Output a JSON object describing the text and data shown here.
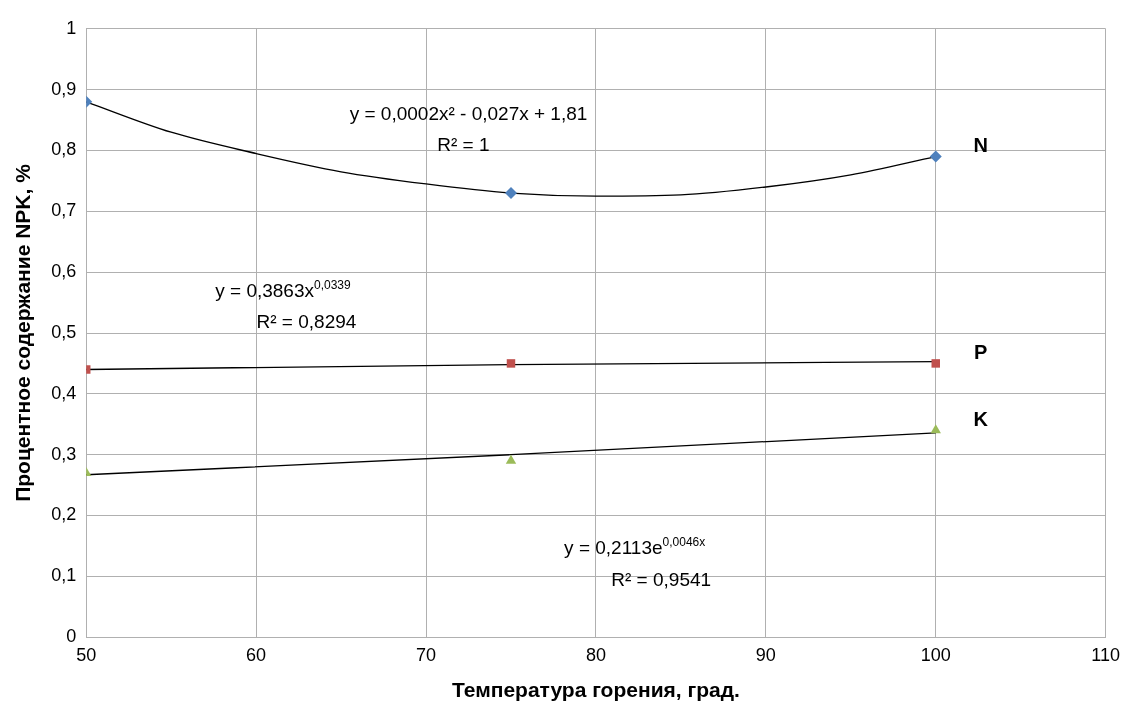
{
  "chart_data": {
    "type": "scatter",
    "xlabel": "Температура горения, град.",
    "ylabel": "Процентное содержание NPK, %",
    "xlim": [
      50,
      110
    ],
    "xticks": [
      50,
      60,
      70,
      80,
      90,
      100,
      110
    ],
    "ylim": [
      0,
      1
    ],
    "yticks": [
      {
        "value": 0,
        "label": "0"
      },
      {
        "value": 0.1,
        "label": "0,1"
      },
      {
        "value": 0.2,
        "label": "0,2"
      },
      {
        "value": 0.3,
        "label": "0,3"
      },
      {
        "value": 0.4,
        "label": "0,4"
      },
      {
        "value": 0.5,
        "label": "0,5"
      },
      {
        "value": 0.6,
        "label": "0,6"
      },
      {
        "value": 0.7,
        "label": "0,7"
      },
      {
        "value": 0.8,
        "label": "0,8"
      },
      {
        "value": 0.9,
        "label": "0,9"
      },
      {
        "value": 1,
        "label": "1"
      }
    ],
    "grid": true,
    "legend": false,
    "series": [
      {
        "name": "N",
        "type": "scatter",
        "marker": "diamond",
        "color": "#4f81bd",
        "x": [
          50,
          75,
          100
        ],
        "values": [
          0.88,
          0.73,
          0.79
        ]
      },
      {
        "name": "P",
        "type": "scatter",
        "marker": "square",
        "color": "#c0504d",
        "x": [
          50,
          75,
          100
        ],
        "values": [
          0.44,
          0.45,
          0.45
        ]
      },
      {
        "name": "K",
        "type": "scatter",
        "marker": "triangle",
        "color": "#9bbb59",
        "x": [
          50,
          75,
          100
        ],
        "values": [
          0.27,
          0.29,
          0.34
        ]
      },
      {
        "type": "line",
        "marker": "none",
        "color": "#000000",
        "x": [
          50,
          55,
          60,
          65,
          70,
          75,
          80,
          85,
          90,
          95,
          100
        ],
        "values": [
          0.88,
          0.83,
          0.795,
          0.765,
          0.745,
          0.73,
          0.725,
          0.727,
          0.74,
          0.76,
          0.79
        ]
      },
      {
        "type": "line",
        "marker": "none",
        "color": "#000000",
        "x": [
          50,
          75,
          100
        ],
        "values": [
          0.44,
          0.448,
          0.453
        ]
      },
      {
        "type": "line",
        "marker": "none",
        "color": "#000000",
        "x": [
          50,
          75,
          100
        ],
        "values": [
          0.267,
          0.3,
          0.336
        ]
      }
    ],
    "annotations": [
      "y = 0,0002x² - 0,027x + 1,81",
      "R² = 1",
      "y = 0,3863x$^{0,0339}$",
      "R² = 0,8294",
      "y = 0,2113e$^{0,0046x}$",
      "R² = 0,9541"
    ]
  }
}
